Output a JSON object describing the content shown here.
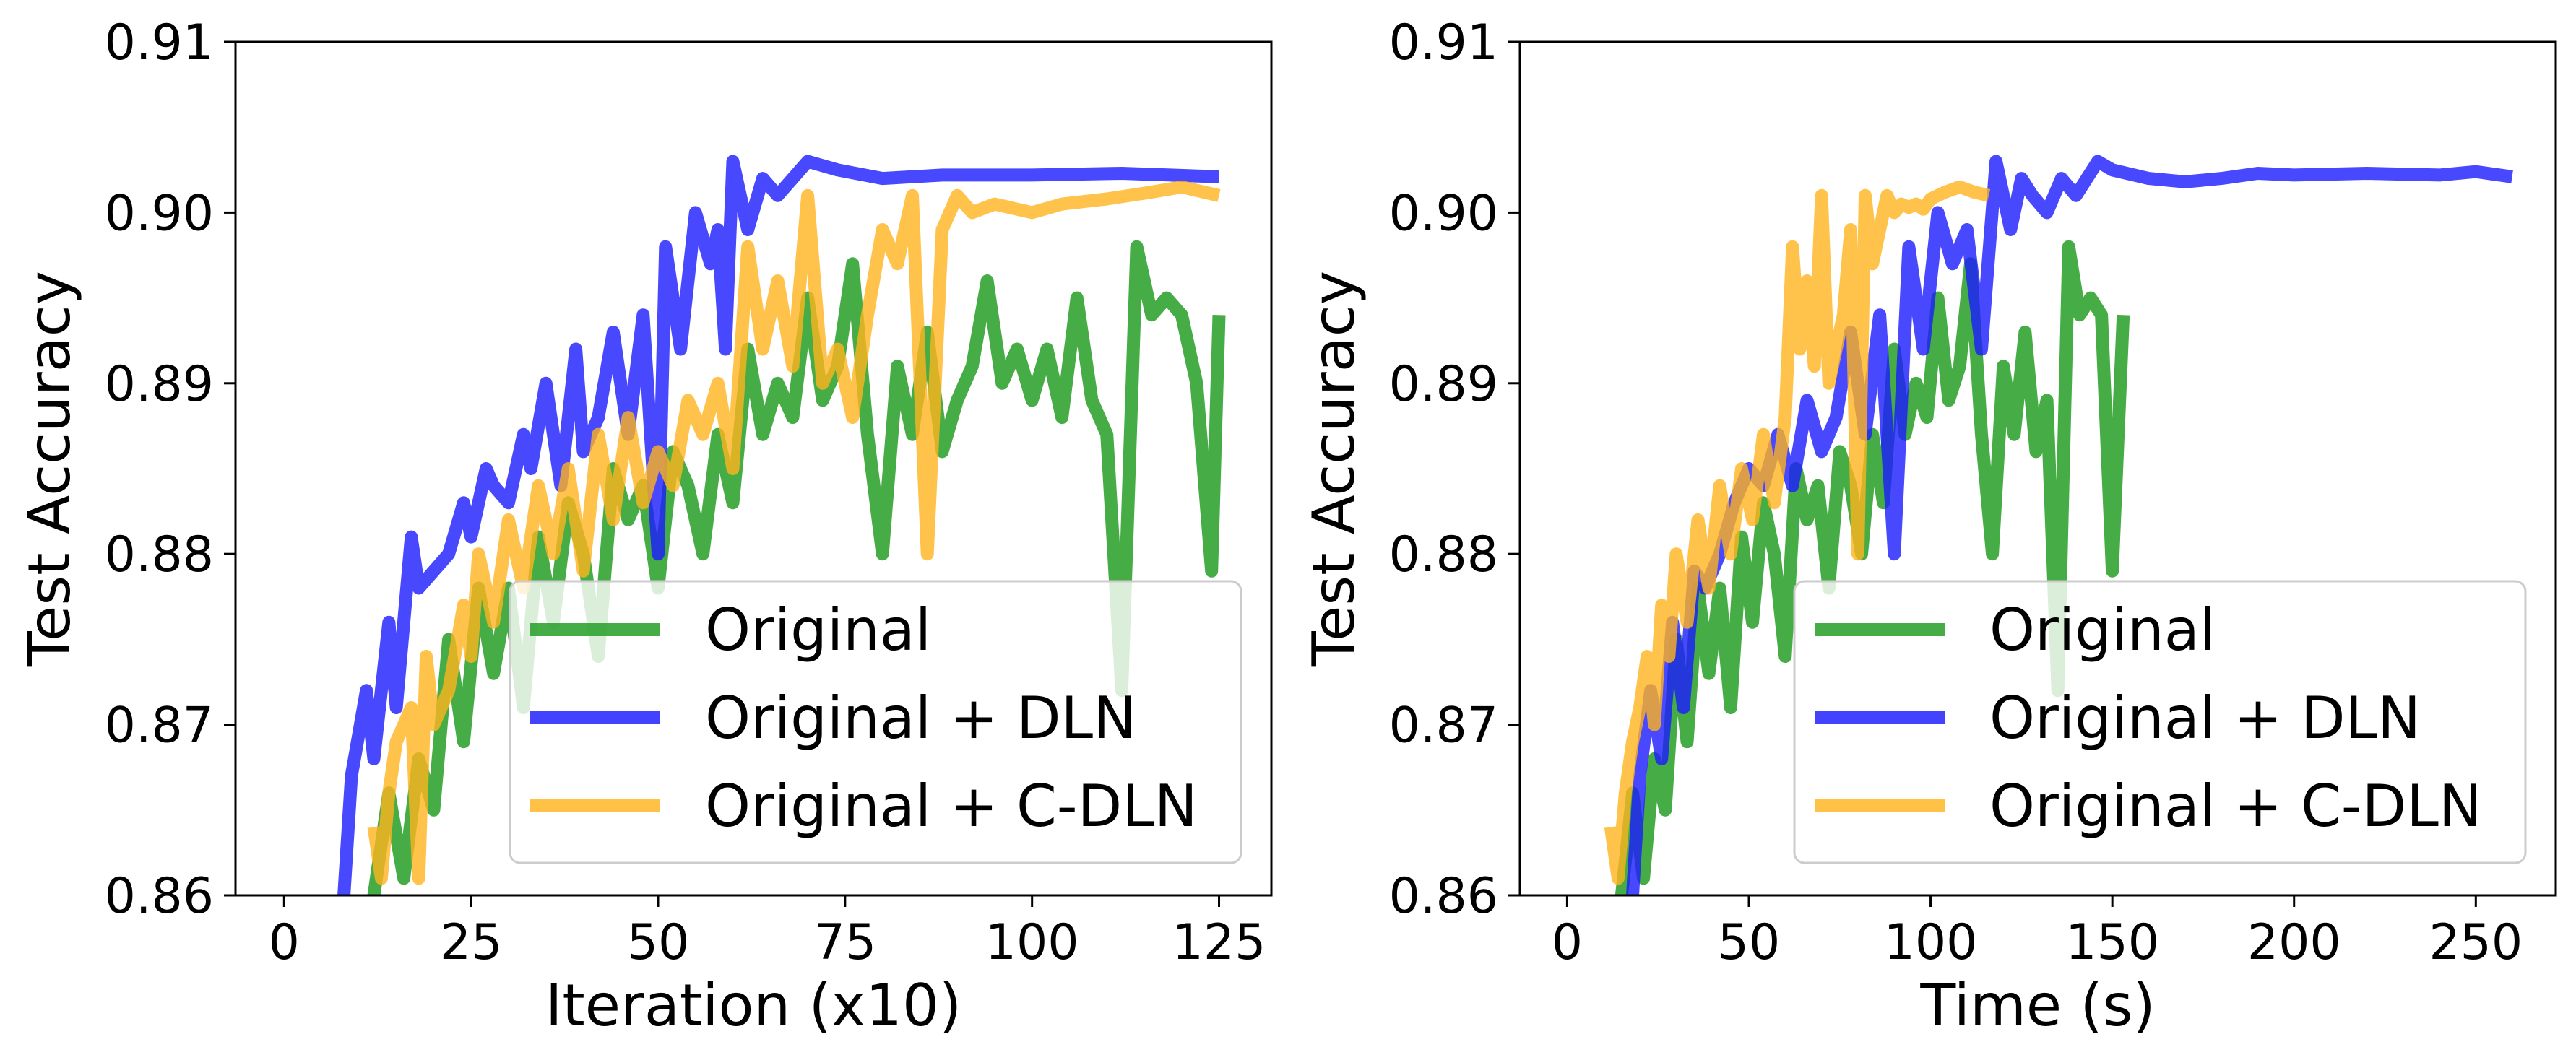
{
  "colors": {
    "original": "#2ca02c",
    "dln": "#1a1aff",
    "cdln": "#ffb41e"
  },
  "chart_data": [
    {
      "type": "line",
      "title": "",
      "xlabel": "Iteration (x10)",
      "ylabel": "Test Accuracy",
      "xlim": [
        -6.5,
        132
      ],
      "ylim": [
        0.86,
        0.91
      ],
      "xticks": [
        0,
        25,
        50,
        75,
        100,
        125
      ],
      "xtick_labels": [
        "0",
        "25",
        "50",
        "75",
        "100",
        "125"
      ],
      "yticks": [
        0.86,
        0.87,
        0.88,
        0.89,
        0.9,
        0.91
      ],
      "ytick_labels": [
        "0.86",
        "0.87",
        "0.88",
        "0.89",
        "0.90",
        "0.91"
      ],
      "legend_position": "lower-right",
      "series": [
        {
          "name": "Original",
          "color_key": "original",
          "x": [
            12,
            14,
            16,
            18,
            20,
            22,
            24,
            26,
            28,
            30,
            32,
            34,
            36,
            38,
            40,
            42,
            44,
            46,
            48,
            50,
            52,
            54,
            56,
            58,
            60,
            62,
            64,
            66,
            68,
            70,
            72,
            74,
            76,
            78,
            80,
            82,
            84,
            86,
            88,
            90,
            92,
            94,
            96,
            98,
            100,
            102,
            104,
            106,
            108,
            110,
            112,
            114,
            116,
            118,
            120,
            122,
            124,
            125
          ],
          "y": [
            0.86,
            0.866,
            0.861,
            0.868,
            0.865,
            0.875,
            0.869,
            0.878,
            0.873,
            0.878,
            0.871,
            0.881,
            0.876,
            0.883,
            0.88,
            0.874,
            0.885,
            0.882,
            0.884,
            0.878,
            0.886,
            0.884,
            0.88,
            0.887,
            0.883,
            0.892,
            0.887,
            0.89,
            0.888,
            0.895,
            0.889,
            0.891,
            0.897,
            0.887,
            0.88,
            0.891,
            0.887,
            0.893,
            0.886,
            0.889,
            0.891,
            0.896,
            0.89,
            0.892,
            0.889,
            0.892,
            0.888,
            0.895,
            0.889,
            0.887,
            0.872,
            0.898,
            0.894,
            0.895,
            0.894,
            0.89,
            0.879,
            0.894
          ]
        },
        {
          "name": "Original + DLN",
          "color_key": "dln",
          "x": [
            8,
            9,
            11,
            12,
            14,
            15,
            17,
            18,
            20,
            22,
            24,
            25,
            27,
            28,
            30,
            32,
            33,
            35,
            37,
            39,
            40,
            42,
            44,
            46,
            48,
            50,
            51,
            53,
            55,
            57,
            58,
            59,
            60,
            62,
            64,
            66,
            70,
            74,
            80,
            88,
            100,
            112,
            125
          ],
          "y": [
            0.86,
            0.867,
            0.872,
            0.868,
            0.876,
            0.871,
            0.881,
            0.878,
            0.879,
            0.88,
            0.883,
            0.881,
            0.885,
            0.884,
            0.883,
            0.887,
            0.885,
            0.89,
            0.884,
            0.892,
            0.886,
            0.888,
            0.893,
            0.887,
            0.894,
            0.88,
            0.898,
            0.892,
            0.9,
            0.897,
            0.899,
            0.892,
            0.903,
            0.899,
            0.902,
            0.901,
            0.903,
            0.9025,
            0.902,
            0.9022,
            0.9022,
            0.9023,
            0.9021
          ]
        },
        {
          "name": "Original + C-DLN",
          "color_key": "cdln",
          "x": [
            12,
            13,
            14,
            15,
            17,
            18,
            19,
            20,
            22,
            24,
            25,
            26,
            28,
            30,
            32,
            34,
            36,
            38,
            40,
            42,
            44,
            46,
            48,
            50,
            52,
            54,
            56,
            58,
            60,
            62,
            64,
            66,
            68,
            70,
            72,
            74,
            76,
            78,
            80,
            82,
            84,
            86,
            88,
            90,
            92,
            95,
            100,
            104,
            110,
            116,
            120,
            125
          ],
          "y": [
            0.864,
            0.861,
            0.866,
            0.869,
            0.871,
            0.861,
            0.874,
            0.87,
            0.872,
            0.877,
            0.874,
            0.88,
            0.876,
            0.882,
            0.878,
            0.884,
            0.88,
            0.885,
            0.879,
            0.887,
            0.882,
            0.888,
            0.883,
            0.886,
            0.884,
            0.889,
            0.887,
            0.89,
            0.885,
            0.898,
            0.892,
            0.896,
            0.891,
            0.901,
            0.89,
            0.892,
            0.888,
            0.894,
            0.899,
            0.897,
            0.901,
            0.88,
            0.899,
            0.901,
            0.9,
            0.9005,
            0.9,
            0.9005,
            0.9008,
            0.9012,
            0.9015,
            0.901
          ]
        }
      ]
    },
    {
      "type": "line",
      "title": "",
      "xlabel": "Time (s)",
      "ylabel": "Test Accuracy",
      "xlim": [
        -13,
        272
      ],
      "ylim": [
        0.86,
        0.91
      ],
      "xticks": [
        0,
        50,
        100,
        150,
        200,
        250
      ],
      "xtick_labels": [
        "0",
        "50",
        "100",
        "150",
        "200",
        "250"
      ],
      "yticks": [
        0.86,
        0.87,
        0.88,
        0.89,
        0.9,
        0.91
      ],
      "ytick_labels": [
        "0.86",
        "0.87",
        "0.88",
        "0.89",
        "0.90",
        "0.91"
      ],
      "legend_position": "lower-right",
      "series": [
        {
          "name": "Original",
          "color_key": "original",
          "x": [
            15,
            18,
            21,
            24,
            27,
            30,
            33,
            36,
            39,
            42,
            45,
            48,
            51,
            54,
            57,
            60,
            63,
            66,
            69,
            72,
            75,
            78,
            81,
            84,
            87,
            90,
            93,
            96,
            99,
            102,
            105,
            108,
            111,
            114,
            117,
            120,
            123,
            126,
            129,
            132,
            135,
            138,
            141,
            144,
            147,
            150,
            153
          ],
          "y": [
            0.86,
            0.866,
            0.861,
            0.868,
            0.865,
            0.875,
            0.869,
            0.878,
            0.873,
            0.878,
            0.871,
            0.881,
            0.876,
            0.883,
            0.88,
            0.874,
            0.885,
            0.882,
            0.884,
            0.878,
            0.886,
            0.884,
            0.88,
            0.887,
            0.883,
            0.892,
            0.887,
            0.89,
            0.888,
            0.895,
            0.889,
            0.891,
            0.897,
            0.887,
            0.88,
            0.891,
            0.887,
            0.893,
            0.886,
            0.889,
            0.872,
            0.898,
            0.894,
            0.895,
            0.894,
            0.879,
            0.894
          ]
        },
        {
          "name": "Original + DLN",
          "color_key": "dln",
          "x": [
            18,
            20,
            23,
            26,
            29,
            32,
            35,
            38,
            42,
            46,
            50,
            54,
            58,
            62,
            66,
            70,
            74,
            78,
            82,
            86,
            90,
            94,
            98,
            102,
            106,
            110,
            114,
            118,
            122,
            125,
            128,
            132,
            136,
            140,
            146,
            150,
            160,
            170,
            180,
            190,
            200,
            220,
            240,
            250,
            260
          ],
          "y": [
            0.86,
            0.867,
            0.872,
            0.868,
            0.876,
            0.871,
            0.879,
            0.878,
            0.88,
            0.883,
            0.885,
            0.884,
            0.887,
            0.884,
            0.889,
            0.886,
            0.888,
            0.893,
            0.887,
            0.894,
            0.88,
            0.898,
            0.892,
            0.9,
            0.897,
            0.899,
            0.892,
            0.903,
            0.899,
            0.902,
            0.901,
            0.9,
            0.902,
            0.901,
            0.903,
            0.9025,
            0.902,
            0.9018,
            0.902,
            0.9023,
            0.9022,
            0.9023,
            0.9022,
            0.9024,
            0.9021
          ]
        },
        {
          "name": "Original + C-DLN",
          "color_key": "cdln",
          "x": [
            12,
            14,
            16,
            18,
            20,
            22,
            24,
            26,
            28,
            30,
            33,
            36,
            39,
            42,
            45,
            48,
            51,
            54,
            57,
            60,
            62,
            64,
            66,
            68,
            70,
            72,
            74,
            76,
            78,
            80,
            82,
            84,
            86,
            88,
            90,
            92,
            94,
            96,
            98,
            100,
            104,
            108,
            112,
            116
          ],
          "y": [
            0.864,
            0.861,
            0.866,
            0.869,
            0.871,
            0.874,
            0.87,
            0.877,
            0.874,
            0.88,
            0.876,
            0.882,
            0.878,
            0.884,
            0.88,
            0.885,
            0.882,
            0.887,
            0.883,
            0.888,
            0.898,
            0.892,
            0.896,
            0.891,
            0.901,
            0.89,
            0.892,
            0.894,
            0.899,
            0.88,
            0.901,
            0.897,
            0.899,
            0.901,
            0.9,
            0.9005,
            0.9003,
            0.9005,
            0.9002,
            0.9008,
            0.9012,
            0.9015,
            0.9012,
            0.901
          ]
        }
      ]
    }
  ]
}
